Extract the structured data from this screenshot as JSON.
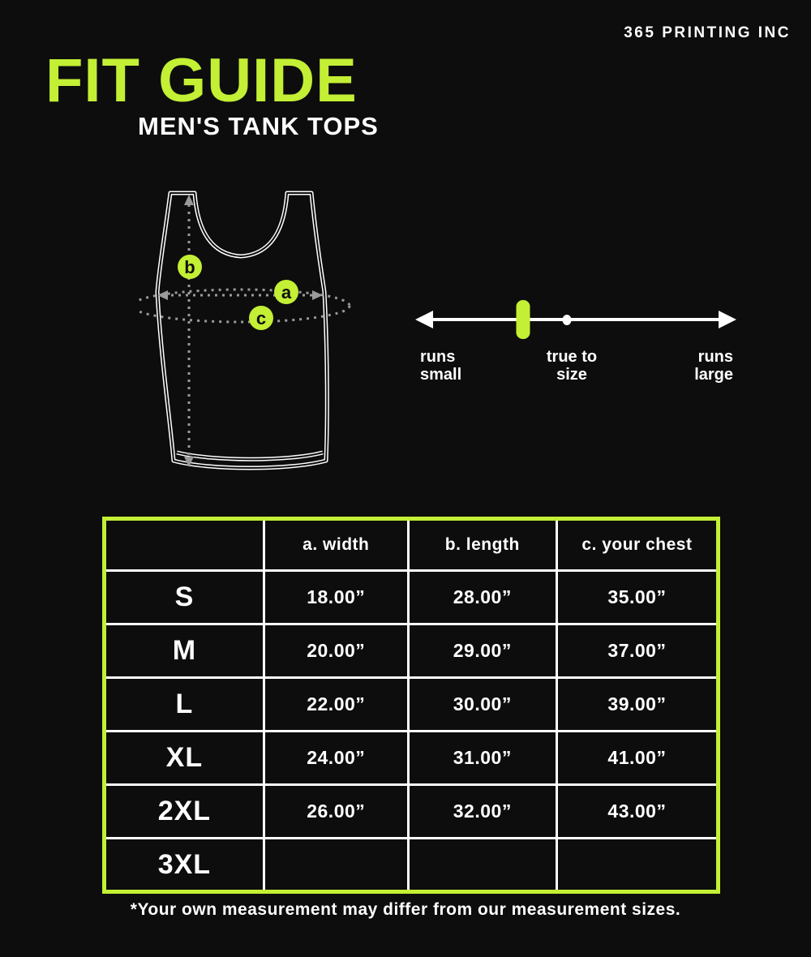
{
  "brand": "365 PRINTING INC",
  "title": "FIT GUIDE",
  "subtitle": "MEN'S TANK TOPS",
  "colors": {
    "accent": "#c3ef34",
    "background": "#0d0d0d",
    "text": "#ffffff",
    "measure_line": "#9a9a9a"
  },
  "diagram": {
    "marker_a": "a",
    "marker_b": "b",
    "marker_c": "c"
  },
  "fit_scale": {
    "left_label": "runs\nsmall",
    "center_label": "true to\nsize",
    "right_label": "runs\nlarge",
    "marker_position_percent": 34.5,
    "center_tick_percent": 47.4
  },
  "size_table": {
    "headers": {
      "size": "",
      "width": "a. width",
      "length": "b. length",
      "chest": "c. your chest"
    },
    "rows": [
      {
        "size": "S",
        "width": "18.00”",
        "length": "28.00”",
        "chest": "35.00”"
      },
      {
        "size": "M",
        "width": "20.00”",
        "length": "29.00”",
        "chest": "37.00”"
      },
      {
        "size": "L",
        "width": "22.00”",
        "length": "30.00”",
        "chest": "39.00”"
      },
      {
        "size": "XL",
        "width": "24.00”",
        "length": "31.00”",
        "chest": "41.00”"
      },
      {
        "size": "2XL",
        "width": "26.00”",
        "length": "32.00”",
        "chest": "43.00”"
      },
      {
        "size": "3XL",
        "width": "",
        "length": "",
        "chest": ""
      }
    ]
  },
  "footnote": "*Your own measurement may differ from our measurement sizes."
}
